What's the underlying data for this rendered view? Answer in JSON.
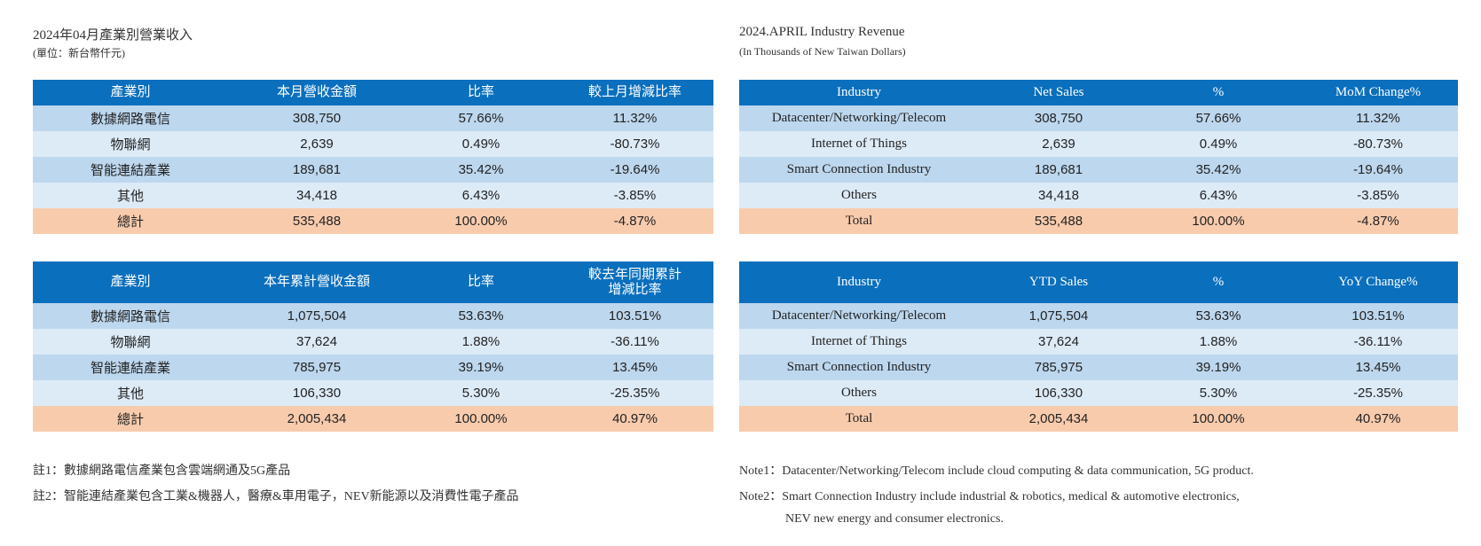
{
  "zh": {
    "title": "2024年04月產業別營業收入",
    "unit": "(單位：新台幣仟元)",
    "monthly": {
      "headers": [
        "產業別",
        "本月營收金額",
        "比率",
        "較上月增減比率"
      ],
      "rows": [
        [
          "數據網路電信",
          "308,750",
          "57.66%",
          "11.32%"
        ],
        [
          "物聯網",
          "2,639",
          "0.49%",
          "-80.73%"
        ],
        [
          "智能連結產業",
          "189,681",
          "35.42%",
          "-19.64%"
        ],
        [
          "其他",
          "34,418",
          "6.43%",
          "-3.85%"
        ],
        [
          "總計",
          "535,488",
          "100.00%",
          "-4.87%"
        ]
      ]
    },
    "ytd": {
      "headers": [
        "產業別",
        "本年累計營收金額",
        "比率",
        "較去年同期累計增減比率"
      ],
      "rows": [
        [
          "數據網路電信",
          "1,075,504",
          "53.63%",
          "103.51%"
        ],
        [
          "物聯網",
          "37,624",
          "1.88%",
          "-36.11%"
        ],
        [
          "智能連結產業",
          "785,975",
          "39.19%",
          "13.45%"
        ],
        [
          "其他",
          "106,330",
          "5.30%",
          "-25.35%"
        ],
        [
          "總計",
          "2,005,434",
          "100.00%",
          "40.97%"
        ]
      ]
    },
    "notes": [
      "註1：數據網路電信產業包含雲端網通及5G產品",
      "註2：智能連結產業包含工業&機器人，醫療&車用電子，NEV新能源以及消費性電子產品"
    ]
  },
  "en": {
    "title": "2024.APRIL Industry Revenue",
    "unit": "(In Thousands of New Taiwan Dollars)",
    "monthly": {
      "headers": [
        "Industry",
        "Net Sales",
        "%",
        "MoM Change%"
      ],
      "rows": [
        [
          "Datacenter/Networking/Telecom",
          "308,750",
          "57.66%",
          "11.32%"
        ],
        [
          "Internet of Things",
          "2,639",
          "0.49%",
          "-80.73%"
        ],
        [
          "Smart Connection Industry",
          "189,681",
          "35.42%",
          "-19.64%"
        ],
        [
          "Others",
          "34,418",
          "6.43%",
          "-3.85%"
        ],
        [
          "Total",
          "535,488",
          "100.00%",
          "-4.87%"
        ]
      ]
    },
    "ytd": {
      "headers": [
        "Industry",
        "YTD Sales",
        "%",
        "YoY Change%"
      ],
      "rows": [
        [
          "Datacenter/Networking/Telecom",
          "1,075,504",
          "53.63%",
          "103.51%"
        ],
        [
          "Internet of Things",
          "37,624",
          "1.88%",
          "-36.11%"
        ],
        [
          "Smart Connection Industry",
          "785,975",
          "39.19%",
          "13.45%"
        ],
        [
          "Others",
          "106,330",
          "5.30%",
          "-25.35%"
        ],
        [
          "Total",
          "2,005,434",
          "100.00%",
          "40.97%"
        ]
      ]
    },
    "notes": [
      "Note1：Datacenter/Networking/Telecom include cloud computing & data communication, 5G product.",
      "Note2：Smart Connection Industry include industrial & robotics, medical & automotive electronics,",
      "NEV new energy and consumer electronics."
    ]
  },
  "colors": {
    "header_bg": "#0a6fbd",
    "row_dark": "#bdd7ee",
    "row_light": "#ddebf7",
    "total_row": "#f8cbad"
  }
}
